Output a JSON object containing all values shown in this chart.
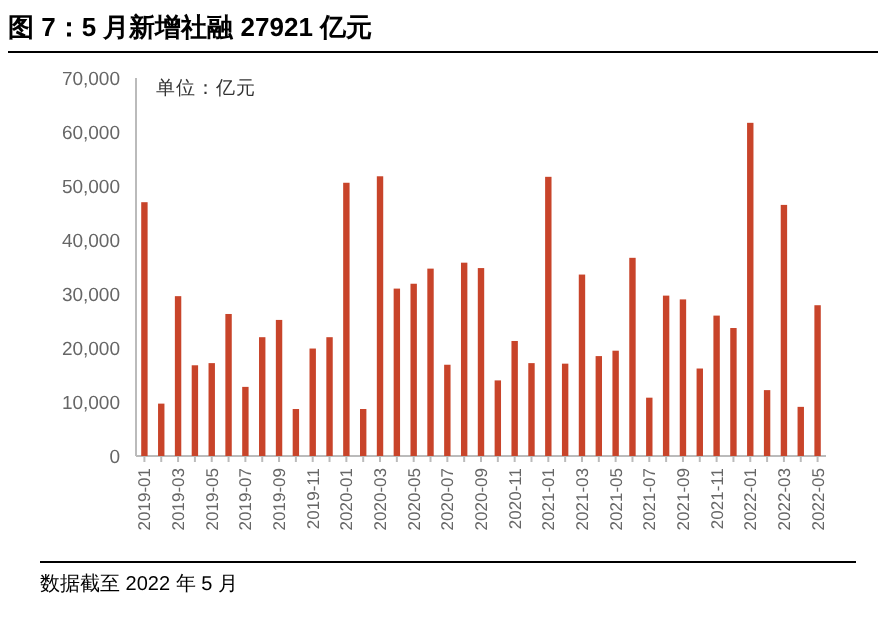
{
  "chart_data": {
    "type": "bar",
    "title": "图 7：5 月新增社融 27921 亿元",
    "annotations": [
      "单位：亿元",
      "数据截至 2022 年 5 月"
    ],
    "categories": [
      "2019-01",
      null,
      "2019-03",
      null,
      "2019-05",
      null,
      "2019-07",
      null,
      "2019-09",
      null,
      "2019-11",
      null,
      "2020-01",
      null,
      "2020-03",
      null,
      "2020-05",
      null,
      "2020-07",
      null,
      "2020-09",
      null,
      "2020-11",
      null,
      "2021-01",
      null,
      "2021-03",
      null,
      "2021-05",
      null,
      "2021-07",
      null,
      "2021-09",
      null,
      "2021-11",
      null,
      "2022-01",
      null,
      "2022-03",
      null,
      "2022-05"
    ],
    "values": [
      47000,
      9700,
      29600,
      16800,
      17200,
      26300,
      12800,
      22000,
      25200,
      8700,
      19900,
      22000,
      50600,
      8700,
      51800,
      31000,
      31900,
      34700,
      16900,
      35800,
      34800,
      14000,
      21300,
      17200,
      51700,
      17100,
      33600,
      18500,
      19500,
      36700,
      10800,
      29700,
      29000,
      16200,
      26000,
      23700,
      61700,
      12200,
      46500,
      9100,
      27921
    ],
    "color": "#c8442a",
    "ylim": [
      0,
      70000
    ],
    "yticks": [
      0,
      {
        "value": 10000,
        "label": "10,000"
      },
      {
        "value": 20000,
        "label": "20,000"
      },
      {
        "value": 30000,
        "label": "30,000"
      },
      {
        "value": 40000,
        "label": "40,000"
      },
      {
        "value": 50000,
        "label": "50,000"
      },
      {
        "value": 60000,
        "label": "60,000"
      },
      {
        "value": 70000,
        "label": "70,000"
      }
    ],
    "grid": false
  }
}
